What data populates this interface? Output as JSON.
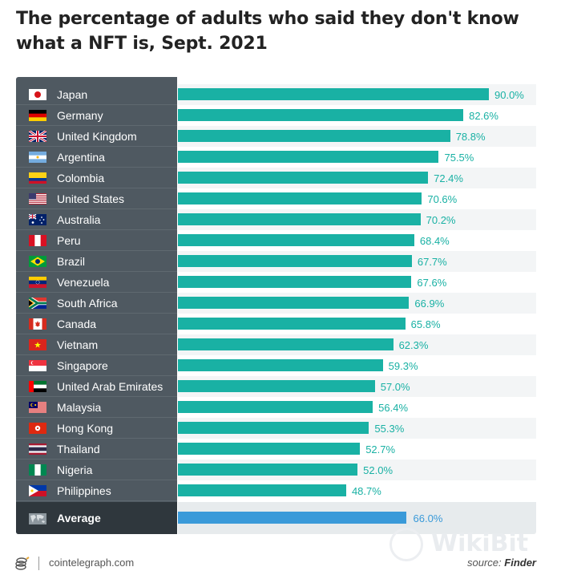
{
  "title": "The percentage of adults who said they don't know what a NFT is, Sept. 2021",
  "footer": {
    "site": "cointelegraph.com",
    "source_prefix": "source: ",
    "source_name": "Finder"
  },
  "watermark": "WikiBit",
  "colors": {
    "bar": "#19b1a4",
    "average_bar": "#3a9ad9",
    "sidebar": "#4f5961",
    "sidebar_average": "#2f373d"
  },
  "chart_data": {
    "type": "bar",
    "orientation": "horizontal",
    "title": "The percentage of adults who said they don't know what a NFT is, Sept. 2021",
    "categories": [
      "Japan",
      "Germany",
      "United Kingdom",
      "Argentina",
      "Colombia",
      "United States",
      "Australia",
      "Peru",
      "Brazil",
      "Venezuela",
      "South Africa",
      "Canada",
      "Vietnam",
      "Singapore",
      "United Arab Emirates",
      "Malaysia",
      "Hong Kong",
      "Thailand",
      "Nigeria",
      "Philippines"
    ],
    "values": [
      90.0,
      82.6,
      78.8,
      75.5,
      72.4,
      70.6,
      70.2,
      68.4,
      67.7,
      67.6,
      66.9,
      65.8,
      62.3,
      59.3,
      57.0,
      56.4,
      55.3,
      52.7,
      52.0,
      48.7
    ],
    "value_labels": [
      "90.0%",
      "82.6%",
      "78.8%",
      "75.5%",
      "72.4%",
      "70.6%",
      "70.2%",
      "68.4%",
      "67.7%",
      "67.6%",
      "66.9%",
      "65.8%",
      "62.3%",
      "59.3%",
      "57.0%",
      "56.4%",
      "55.3%",
      "52.7%",
      "52.0%",
      "48.7%"
    ],
    "flags": [
      "japan-flag-icon",
      "germany-flag-icon",
      "united-kingdom-flag-icon",
      "argentina-flag-icon",
      "colombia-flag-icon",
      "united-states-flag-icon",
      "australia-flag-icon",
      "peru-flag-icon",
      "brazil-flag-icon",
      "venezuela-flag-icon",
      "south-africa-flag-icon",
      "canada-flag-icon",
      "vietnam-flag-icon",
      "singapore-flag-icon",
      "uae-flag-icon",
      "malaysia-flag-icon",
      "hong-kong-flag-icon",
      "thailand-flag-icon",
      "nigeria-flag-icon",
      "philippines-flag-icon"
    ],
    "average": {
      "label": "Average",
      "value": 66.0,
      "value_label": "66.0%",
      "icon": "world-map-icon"
    },
    "xlim": [
      0,
      90
    ],
    "grid": false,
    "legend": "none"
  }
}
